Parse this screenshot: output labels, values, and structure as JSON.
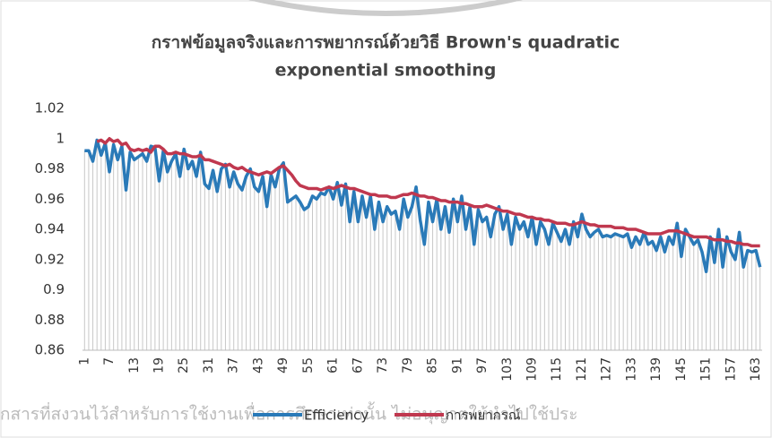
{
  "chart_data": {
    "type": "line",
    "title": [
      "กราฟข้อมูลจริงและการพยากรณ์ด้วยวิธี  Brown's quadratic",
      "exponential smoothing"
    ],
    "watermark": "กสารที่สงวนไว้สำหรับการใช้งานเพื่อการศึกษาเท่านั้น ไม่อนุญาตให้นำไปใช้ประ",
    "categories": [
      1,
      null,
      null,
      null,
      null,
      null,
      7,
      null,
      null,
      null,
      null,
      null,
      13,
      null,
      null,
      null,
      null,
      null,
      19,
      null,
      null,
      null,
      null,
      null,
      25,
      null,
      null,
      null,
      null,
      null,
      31,
      null,
      null,
      null,
      null,
      null,
      37,
      null,
      null,
      null,
      null,
      null,
      43,
      null,
      null,
      null,
      null,
      null,
      49,
      null,
      null,
      null,
      null,
      null,
      55,
      null,
      null,
      null,
      null,
      null,
      61,
      null,
      null,
      null,
      null,
      null,
      67,
      null,
      null,
      null,
      null,
      null,
      73,
      null,
      null,
      null,
      null,
      null,
      79,
      null,
      null,
      null,
      null,
      null,
      85,
      null,
      null,
      null,
      null,
      null,
      91,
      null,
      null,
      null,
      null,
      null,
      97,
      null,
      null,
      null,
      null,
      null,
      103,
      null,
      null,
      null,
      null,
      null,
      109,
      null,
      null,
      null,
      null,
      null,
      115,
      null,
      null,
      null,
      null,
      null,
      121,
      null,
      null,
      null,
      null,
      null,
      127,
      null,
      null,
      null,
      null,
      null,
      133,
      null,
      null,
      null,
      null,
      null,
      139,
      null,
      null,
      null,
      null,
      null,
      145,
      null,
      null,
      null,
      null,
      null,
      151,
      null,
      null,
      null,
      null,
      null,
      157,
      null,
      null,
      null,
      null,
      null,
      163,
      null
    ],
    "series": [
      {
        "name": "Efficiency",
        "color": "#2a7ab8",
        "values": [
          0.992,
          0.992,
          0.985,
          0.999,
          0.989,
          0.997,
          0.978,
          0.996,
          0.986,
          0.995,
          0.966,
          0.991,
          0.986,
          0.988,
          0.99,
          0.985,
          0.995,
          0.994,
          0.972,
          0.992,
          0.978,
          0.985,
          0.99,
          0.975,
          0.993,
          0.98,
          0.985,
          0.975,
          0.991,
          0.97,
          0.967,
          0.979,
          0.965,
          0.98,
          0.983,
          0.968,
          0.978,
          0.97,
          0.966,
          0.975,
          0.98,
          0.968,
          0.965,
          0.975,
          0.955,
          0.976,
          0.968,
          0.98,
          0.984,
          0.958,
          0.96,
          0.962,
          0.958,
          0.953,
          0.955,
          0.962,
          0.96,
          0.964,
          0.963,
          0.968,
          0.96,
          0.971,
          0.956,
          0.97,
          0.945,
          0.965,
          0.945,
          0.962,
          0.948,
          0.962,
          0.94,
          0.958,
          0.945,
          0.955,
          0.95,
          0.952,
          0.94,
          0.96,
          0.948,
          0.955,
          0.968,
          0.946,
          0.93,
          0.958,
          0.945,
          0.96,
          0.94,
          0.955,
          0.938,
          0.96,
          0.945,
          0.962,
          0.94,
          0.955,
          0.93,
          0.953,
          0.945,
          0.948,
          0.935,
          0.95,
          0.955,
          0.94,
          0.95,
          0.93,
          0.948,
          0.94,
          0.945,
          0.935,
          0.948,
          0.93,
          0.945,
          0.94,
          0.93,
          0.944,
          0.938,
          0.932,
          0.94,
          0.93,
          0.945,
          0.935,
          0.95,
          0.94,
          0.935,
          0.938,
          0.94,
          0.935,
          0.936,
          0.935,
          0.937,
          0.936,
          0.935,
          0.937,
          0.928,
          0.935,
          0.93,
          0.938,
          0.93,
          0.932,
          0.926,
          0.935,
          0.925,
          0.935,
          0.93,
          0.944,
          0.922,
          0.94,
          0.935,
          0.93,
          0.933,
          0.925,
          0.912,
          0.935,
          0.918,
          0.94,
          0.915,
          0.935,
          0.925,
          0.92,
          0.938,
          0.915,
          0.926,
          0.925,
          0.926,
          0.915
        ]
      },
      {
        "name": "การพยากรณ์",
        "color": "#c0384f",
        "values": [
          null,
          null,
          null,
          0.998,
          0.999,
          0.997,
          1.0,
          0.998,
          0.999,
          0.996,
          0.997,
          0.993,
          0.992,
          0.993,
          0.992,
          0.993,
          0.991,
          0.995,
          0.995,
          0.993,
          0.99,
          0.99,
          0.991,
          0.99,
          0.99,
          0.989,
          0.988,
          0.988,
          0.989,
          0.986,
          0.986,
          0.985,
          0.984,
          0.983,
          0.982,
          0.983,
          0.981,
          0.98,
          0.981,
          0.979,
          0.978,
          0.977,
          0.976,
          0.977,
          0.978,
          0.977,
          0.979,
          0.981,
          0.982,
          0.979,
          0.976,
          0.972,
          0.969,
          0.968,
          0.967,
          0.967,
          0.967,
          0.966,
          0.967,
          0.968,
          0.967,
          0.968,
          0.969,
          0.968,
          0.967,
          0.967,
          0.966,
          0.965,
          0.964,
          0.963,
          0.963,
          0.962,
          0.962,
          0.962,
          0.961,
          0.961,
          0.962,
          0.963,
          0.963,
          0.964,
          0.963,
          0.962,
          0.962,
          0.961,
          0.961,
          0.96,
          0.959,
          0.959,
          0.958,
          0.958,
          0.958,
          0.957,
          0.957,
          0.956,
          0.955,
          0.955,
          0.955,
          0.956,
          0.955,
          0.954,
          0.953,
          0.952,
          0.952,
          0.951,
          0.95,
          0.95,
          0.949,
          0.948,
          0.948,
          0.947,
          0.947,
          0.946,
          0.946,
          0.945,
          0.944,
          0.944,
          0.944,
          0.943,
          0.943,
          0.944,
          0.945,
          0.944,
          0.943,
          0.943,
          0.942,
          0.942,
          0.942,
          0.942,
          0.941,
          0.941,
          0.941,
          0.94,
          0.94,
          0.94,
          0.939,
          0.938,
          0.937,
          0.937,
          0.937,
          0.937,
          0.938,
          0.939,
          0.939,
          0.939,
          0.938,
          0.937,
          0.936,
          0.935,
          0.935,
          0.935,
          0.935,
          0.934,
          0.933,
          0.933,
          0.933,
          0.932,
          0.932,
          0.931,
          0.931,
          0.93,
          0.93,
          0.929,
          0.929,
          0.929
        ]
      }
    ],
    "ylim": [
      0.86,
      1.02
    ],
    "yticks": [
      0.86,
      0.88,
      0.9,
      0.92,
      0.94,
      0.96,
      0.98,
      1,
      1.02
    ],
    "drop_lines": true,
    "legend": "bottom"
  }
}
